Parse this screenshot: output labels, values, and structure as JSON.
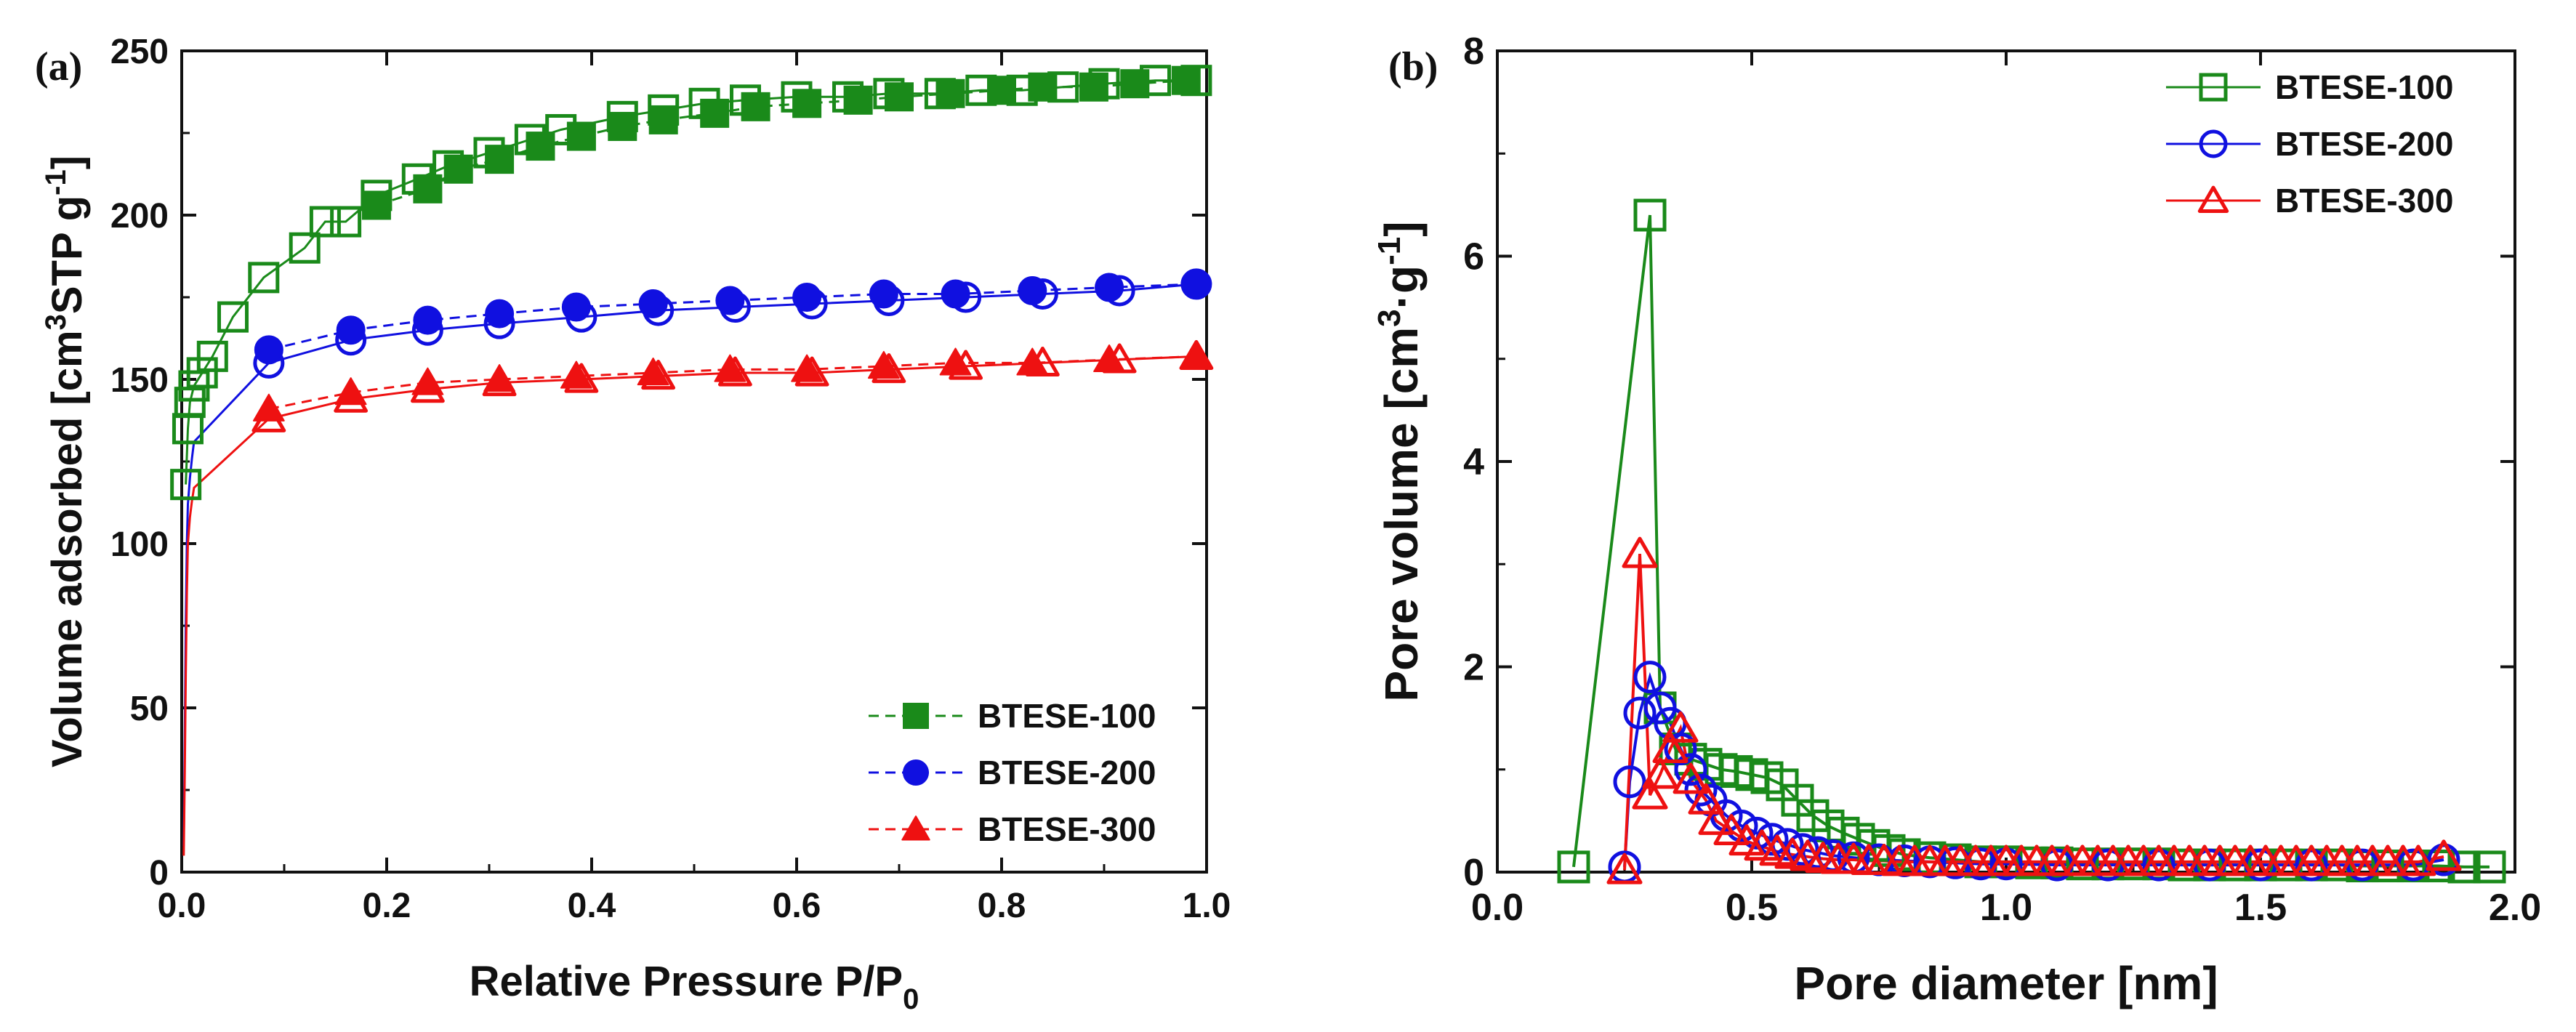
{
  "panel_a_label": "(a)",
  "panel_b_label": "(b)",
  "chart_data": [
    {
      "type": "scatter",
      "title": "",
      "xlabel": "Relative Pressure P/P",
      "xlabel_sub": "0",
      "ylabel_main": "Volume adsorbed [cm",
      "ylabel_sup1": "3",
      "ylabel_mid": "STP g",
      "ylabel_sup2": "-1",
      "ylabel_end": "]",
      "xlim": [
        0,
        1.0
      ],
      "ylim": [
        0,
        250
      ],
      "xticks": [
        "0.0",
        "0.2",
        "0.4",
        "0.6",
        "0.8",
        "1.0"
      ],
      "yticks": [
        "0",
        "50",
        "100",
        "150",
        "200",
        "250"
      ],
      "legend_position": "bottom-right",
      "series": [
        {
          "name": "BTESE-100",
          "color": "#1a8a1a",
          "marker": "square",
          "adsorption": [
            [
              0.004,
              118
            ],
            [
              0.006,
              135
            ],
            [
              0.008,
              143
            ],
            [
              0.012,
              148
            ],
            [
              0.02,
              152
            ],
            [
              0.03,
              157
            ],
            [
              0.05,
              169
            ],
            [
              0.08,
              181
            ],
            [
              0.12,
              190
            ],
            [
              0.14,
              198
            ],
            [
              0.16,
              198
            ],
            [
              0.19,
              206
            ],
            [
              0.23,
              211
            ],
            [
              0.26,
              215
            ],
            [
              0.3,
              219
            ],
            [
              0.34,
              223
            ],
            [
              0.37,
              226
            ],
            [
              0.43,
              230
            ],
            [
              0.47,
              232
            ],
            [
              0.51,
              234
            ],
            [
              0.55,
              235
            ],
            [
              0.6,
              236
            ],
            [
              0.65,
              236
            ],
            [
              0.69,
              237
            ],
            [
              0.74,
              237
            ],
            [
              0.78,
              238
            ],
            [
              0.82,
              238
            ],
            [
              0.86,
              239
            ],
            [
              0.9,
              240
            ],
            [
              0.95,
              241
            ],
            [
              0.99,
              241
            ]
          ],
          "desorption": [
            [
              0.19,
              203
            ],
            [
              0.24,
              208
            ],
            [
              0.27,
              214
            ],
            [
              0.31,
              217
            ],
            [
              0.35,
              221
            ],
            [
              0.39,
              224
            ],
            [
              0.43,
              227
            ],
            [
              0.47,
              229
            ],
            [
              0.52,
              231
            ],
            [
              0.56,
              233
            ],
            [
              0.61,
              234
            ],
            [
              0.66,
              235
            ],
            [
              0.7,
              236
            ],
            [
              0.75,
              237
            ],
            [
              0.8,
              238
            ],
            [
              0.84,
              239
            ],
            [
              0.89,
              239
            ],
            [
              0.93,
              240
            ],
            [
              0.98,
              241
            ]
          ]
        },
        {
          "name": "BTESE-200",
          "color": "#1010e0",
          "marker": "circle",
          "adsorption": [
            [
              0.002,
              8
            ],
            [
              0.003,
              40
            ],
            [
              0.004,
              75
            ],
            [
              0.005,
              100
            ],
            [
              0.006,
              112
            ],
            [
              0.008,
              120
            ],
            [
              0.01,
              126
            ],
            [
              0.012,
              131
            ],
            [
              0.085,
              155
            ],
            [
              0.165,
              162
            ],
            [
              0.24,
              165
            ],
            [
              0.31,
              167
            ],
            [
              0.39,
              169
            ],
            [
              0.465,
              171
            ],
            [
              0.54,
              172
            ],
            [
              0.615,
              173
            ],
            [
              0.69,
              174
            ],
            [
              0.765,
              175
            ],
            [
              0.84,
              176
            ],
            [
              0.915,
              177
            ],
            [
              0.99,
              179
            ]
          ],
          "desorption": [
            [
              0.085,
              159
            ],
            [
              0.165,
              165
            ],
            [
              0.24,
              168
            ],
            [
              0.31,
              170
            ],
            [
              0.385,
              172
            ],
            [
              0.46,
              173
            ],
            [
              0.535,
              174
            ],
            [
              0.61,
              175
            ],
            [
              0.685,
              176
            ],
            [
              0.755,
              176
            ],
            [
              0.83,
              177
            ],
            [
              0.905,
              178
            ],
            [
              0.99,
              179
            ]
          ]
        },
        {
          "name": "BTESE-300",
          "color": "#ee1111",
          "marker": "triangle",
          "adsorption": [
            [
              0.002,
              5
            ],
            [
              0.003,
              30
            ],
            [
              0.004,
              60
            ],
            [
              0.005,
              85
            ],
            [
              0.006,
              100
            ],
            [
              0.008,
              108
            ],
            [
              0.01,
              113
            ],
            [
              0.012,
              117
            ],
            [
              0.085,
              138
            ],
            [
              0.165,
              144
            ],
            [
              0.24,
              147
            ],
            [
              0.31,
              149
            ],
            [
              0.39,
              150
            ],
            [
              0.465,
              151
            ],
            [
              0.54,
              152
            ],
            [
              0.615,
              152
            ],
            [
              0.69,
              153
            ],
            [
              0.765,
              154
            ],
            [
              0.84,
              155
            ],
            [
              0.915,
              156
            ],
            [
              0.99,
              157
            ]
          ],
          "desorption": [
            [
              0.085,
              141
            ],
            [
              0.165,
              146
            ],
            [
              0.24,
              149
            ],
            [
              0.31,
              150
            ],
            [
              0.385,
              151
            ],
            [
              0.46,
              152
            ],
            [
              0.535,
              153
            ],
            [
              0.61,
              153
            ],
            [
              0.685,
              154
            ],
            [
              0.755,
              155
            ],
            [
              0.83,
              155
            ],
            [
              0.905,
              156
            ],
            [
              0.99,
              157
            ]
          ]
        }
      ]
    },
    {
      "type": "line",
      "title": "",
      "xlabel": "Pore diameter [nm]",
      "ylabel_main": "Pore volume [cm",
      "ylabel_sup1": "3",
      "ylabel_mid": "·g",
      "ylabel_sup2": "-1",
      "ylabel_end": "]",
      "xlim": [
        0,
        2.0
      ],
      "ylim": [
        0,
        8
      ],
      "xticks": [
        "0.0",
        "0.5",
        "1.0",
        "1.5",
        "2.0"
      ],
      "yticks": [
        "0",
        "2",
        "4",
        "6",
        "8"
      ],
      "legend_position": "top-right",
      "series": [
        {
          "name": "BTESE-100",
          "color": "#1a8a1a",
          "marker": "square",
          "points": [
            [
              0.15,
              0.05
            ],
            [
              0.3,
              6.4
            ],
            [
              0.32,
              1.6
            ],
            [
              0.35,
              1.2
            ],
            [
              0.38,
              1.1
            ],
            [
              0.41,
              1.05
            ],
            [
              0.44,
              1.0
            ],
            [
              0.47,
              0.98
            ],
            [
              0.5,
              0.95
            ],
            [
              0.53,
              0.92
            ],
            [
              0.56,
              0.85
            ],
            [
              0.59,
              0.7
            ],
            [
              0.62,
              0.55
            ],
            [
              0.65,
              0.45
            ],
            [
              0.68,
              0.38
            ],
            [
              0.71,
              0.32
            ],
            [
              0.74,
              0.26
            ],
            [
              0.77,
              0.21
            ],
            [
              0.8,
              0.17
            ],
            [
              0.85,
              0.14
            ],
            [
              0.9,
              0.12
            ],
            [
              0.95,
              0.1
            ],
            [
              1.0,
              0.1
            ],
            [
              1.05,
              0.09
            ],
            [
              1.1,
              0.09
            ],
            [
              1.15,
              0.08
            ],
            [
              1.2,
              0.08
            ],
            [
              1.25,
              0.08
            ],
            [
              1.3,
              0.08
            ],
            [
              1.35,
              0.07
            ],
            [
              1.4,
              0.07
            ],
            [
              1.45,
              0.07
            ],
            [
              1.5,
              0.07
            ],
            [
              1.55,
              0.07
            ],
            [
              1.6,
              0.07
            ],
            [
              1.65,
              0.07
            ],
            [
              1.7,
              0.06
            ],
            [
              1.75,
              0.06
            ],
            [
              1.8,
              0.06
            ],
            [
              1.85,
              0.06
            ],
            [
              1.9,
              0.05
            ],
            [
              1.95,
              0.05
            ]
          ]
        },
        {
          "name": "BTESE-200",
          "color": "#1010e0",
          "marker": "circle",
          "points": [
            [
              0.25,
              0.05
            ],
            [
              0.26,
              0.88
            ],
            [
              0.28,
              1.55
            ],
            [
              0.3,
              1.9
            ],
            [
              0.32,
              1.6
            ],
            [
              0.34,
              1.45
            ],
            [
              0.36,
              1.2
            ],
            [
              0.38,
              1.0
            ],
            [
              0.4,
              0.8
            ],
            [
              0.42,
              0.7
            ],
            [
              0.45,
              0.55
            ],
            [
              0.48,
              0.45
            ],
            [
              0.51,
              0.38
            ],
            [
              0.54,
              0.32
            ],
            [
              0.57,
              0.27
            ],
            [
              0.6,
              0.22
            ],
            [
              0.63,
              0.19
            ],
            [
              0.66,
              0.16
            ],
            [
              0.7,
              0.14
            ],
            [
              0.75,
              0.12
            ],
            [
              0.8,
              0.11
            ],
            [
              0.85,
              0.1
            ],
            [
              0.9,
              0.09
            ],
            [
              0.95,
              0.08
            ],
            [
              1.0,
              0.08
            ],
            [
              1.1,
              0.07
            ],
            [
              1.2,
              0.07
            ],
            [
              1.3,
              0.07
            ],
            [
              1.4,
              0.07
            ],
            [
              1.5,
              0.07
            ],
            [
              1.6,
              0.07
            ],
            [
              1.7,
              0.07
            ],
            [
              1.8,
              0.07
            ],
            [
              1.86,
              0.12
            ]
          ]
        },
        {
          "name": "BTESE-300",
          "color": "#ee1111",
          "marker": "triangle",
          "points": [
            [
              0.25,
              0.02
            ],
            [
              0.28,
              3.1
            ],
            [
              0.3,
              0.75
            ],
            [
              0.32,
              0.95
            ],
            [
              0.34,
              1.2
            ],
            [
              0.36,
              1.4
            ],
            [
              0.38,
              0.9
            ],
            [
              0.41,
              0.7
            ],
            [
              0.43,
              0.5
            ],
            [
              0.46,
              0.4
            ],
            [
              0.49,
              0.3
            ],
            [
              0.52,
              0.25
            ],
            [
              0.55,
              0.2
            ],
            [
              0.58,
              0.17
            ],
            [
              0.61,
              0.15
            ],
            [
              0.64,
              0.13
            ],
            [
              0.67,
              0.12
            ],
            [
              0.7,
              0.12
            ],
            [
              0.73,
              0.11
            ],
            [
              0.76,
              0.11
            ],
            [
              0.79,
              0.1
            ],
            [
              0.82,
              0.1
            ],
            [
              0.85,
              0.1
            ],
            [
              0.88,
              0.1
            ],
            [
              0.91,
              0.1
            ],
            [
              0.94,
              0.1
            ],
            [
              0.97,
              0.1
            ],
            [
              1.0,
              0.1
            ],
            [
              1.03,
              0.1
            ],
            [
              1.06,
              0.1
            ],
            [
              1.09,
              0.1
            ],
            [
              1.12,
              0.1
            ],
            [
              1.15,
              0.1
            ],
            [
              1.18,
              0.1
            ],
            [
              1.21,
              0.1
            ],
            [
              1.24,
              0.1
            ],
            [
              1.27,
              0.1
            ],
            [
              1.3,
              0.1
            ],
            [
              1.33,
              0.1
            ],
            [
              1.36,
              0.1
            ],
            [
              1.39,
              0.1
            ],
            [
              1.42,
              0.1
            ],
            [
              1.45,
              0.1
            ],
            [
              1.48,
              0.1
            ],
            [
              1.51,
              0.1
            ],
            [
              1.54,
              0.1
            ],
            [
              1.57,
              0.1
            ],
            [
              1.6,
              0.1
            ],
            [
              1.63,
              0.1
            ],
            [
              1.66,
              0.1
            ],
            [
              1.69,
              0.1
            ],
            [
              1.72,
              0.1
            ],
            [
              1.75,
              0.1
            ],
            [
              1.78,
              0.1
            ],
            [
              1.81,
              0.1
            ],
            [
              1.86,
              0.15
            ]
          ]
        }
      ]
    }
  ]
}
